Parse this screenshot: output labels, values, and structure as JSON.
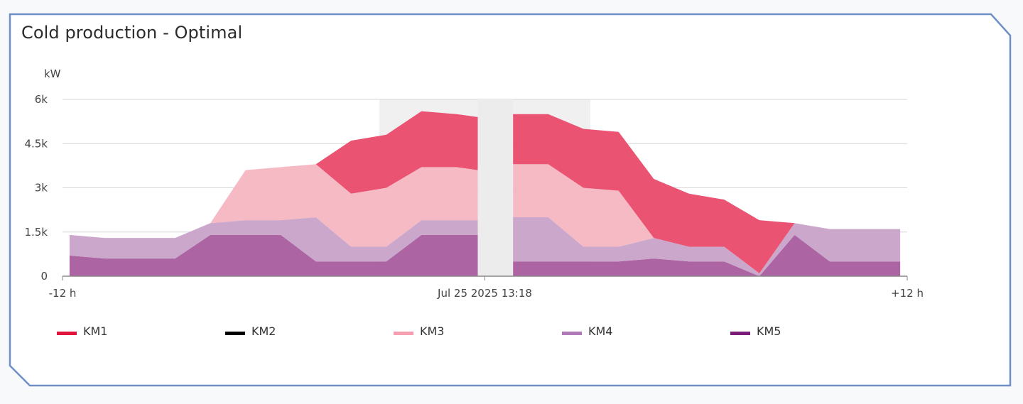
{
  "panel": {
    "title": "Cold production - Optimal",
    "border_color": "#6f8fc6"
  },
  "chart_data": {
    "type": "area",
    "stacked": true,
    "title": "Cold production - Optimal",
    "ylabel": "kW",
    "ylim": [
      0,
      6000
    ],
    "yticks": [
      0,
      1500,
      3000,
      4500,
      6000
    ],
    "ytick_labels": [
      "0",
      "1.5k",
      "3k",
      "4.5k",
      "6k"
    ],
    "xlim": [
      -12,
      12
    ],
    "xtick_labels": [
      {
        "x": -12,
        "label": "-12 h"
      },
      {
        "x": 0,
        "label": "Jul 25 2025 13:18"
      },
      {
        "x": 12,
        "label": "+12 h"
      }
    ],
    "grid": true,
    "legend_position": "bottom",
    "highlight_band": {
      "from": -3,
      "to": 3,
      "color": "#f0f0f0"
    },
    "gap_band": {
      "from": -0.2,
      "to": 0.8,
      "color": "#ececec"
    },
    "x": [
      -11.8,
      -10.8,
      -9.8,
      -8.8,
      -7.8,
      -6.8,
      -5.8,
      -4.8,
      -3.8,
      -2.8,
      -1.8,
      -0.8,
      -0.2,
      0.8,
      1.8,
      2.8,
      3.8,
      4.8,
      5.8,
      6.8,
      7.8,
      8.8,
      9.8,
      10.8,
      11.8
    ],
    "gap_after_index": 12,
    "series": [
      {
        "name": "KM5",
        "color": "#7b1e7a",
        "fill": "#a85c9e",
        "values": [
          700,
          600,
          600,
          600,
          1400,
          1400,
          1400,
          500,
          500,
          500,
          1400,
          1400,
          1400,
          500,
          500,
          500,
          500,
          600,
          500,
          500,
          0,
          1400,
          500,
          500,
          500
        ]
      },
      {
        "name": "KM4",
        "color": "#b07ab9",
        "fill": "#c9a2c9",
        "values": [
          700,
          700,
          700,
          700,
          400,
          500,
          500,
          1500,
          500,
          500,
          500,
          500,
          500,
          1500,
          1500,
          500,
          500,
          700,
          500,
          500,
          100,
          400,
          1100,
          1100,
          1100
        ]
      },
      {
        "name": "KM3",
        "color": "#f4a0b0",
        "fill": "#f5b6c2",
        "values": [
          0,
          0,
          0,
          0,
          0,
          1700,
          1800,
          1800,
          1800,
          2000,
          1800,
          1800,
          1700,
          1800,
          1800,
          2000,
          1900,
          0,
          0,
          0,
          0,
          0,
          0,
          0,
          0
        ]
      },
      {
        "name": "KM2",
        "color": "#000000",
        "fill": "#000000",
        "values": [
          0,
          0,
          0,
          0,
          0,
          0,
          0,
          0,
          0,
          0,
          0,
          0,
          0,
          0,
          0,
          0,
          0,
          0,
          0,
          0,
          0,
          0,
          0,
          0,
          0
        ]
      },
      {
        "name": "KM1",
        "color": "#e0143c",
        "fill": "#ea4a6a",
        "values": [
          0,
          0,
          0,
          0,
          0,
          0,
          0,
          0,
          1800,
          1800,
          1900,
          1800,
          1800,
          1700,
          1700,
          2000,
          2000,
          2000,
          1800,
          1600,
          1800,
          0,
          0,
          0,
          0
        ]
      }
    ],
    "legend": [
      {
        "name": "KM1",
        "color": "#e0143c"
      },
      {
        "name": "KM2",
        "color": "#000000"
      },
      {
        "name": "KM3",
        "color": "#f4a0b0"
      },
      {
        "name": "KM4",
        "color": "#b07ab9"
      },
      {
        "name": "KM5",
        "color": "#7b1e7a"
      }
    ]
  }
}
